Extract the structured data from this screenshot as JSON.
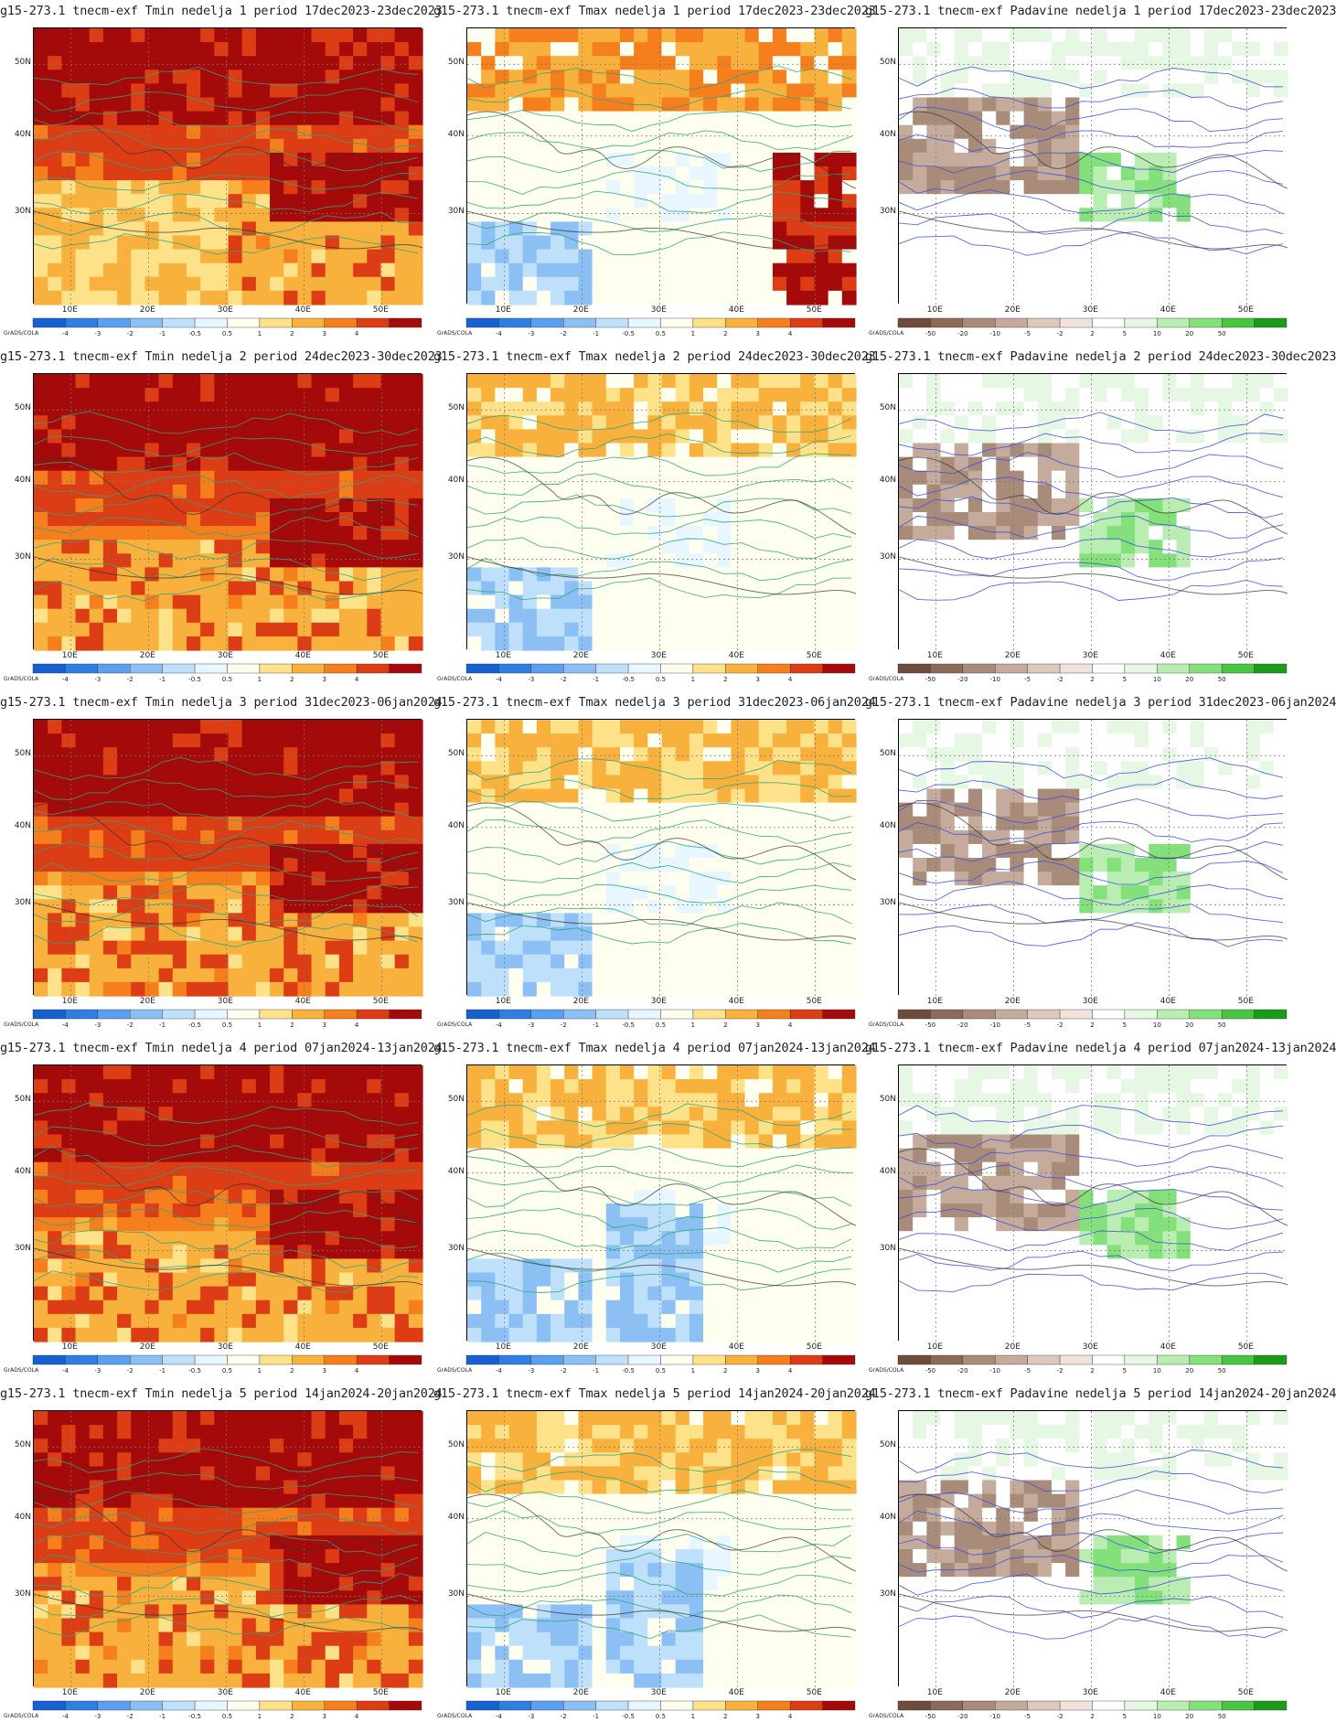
{
  "brand_label": "GrADS/COLA",
  "lat_labels": [
    "50N",
    "40N",
    "30N"
  ],
  "lon_labels": [
    "10E",
    "20E",
    "30E",
    "40E",
    "50E"
  ],
  "colorbars": {
    "temp": {
      "ticks": [
        "-4",
        "-3",
        "-2",
        "-1",
        "-0.5",
        "0.5",
        "1",
        "2",
        "3",
        "4"
      ],
      "colors": [
        "#1760cf",
        "#2f7fe3",
        "#5aa0ee",
        "#8cc0f5",
        "#bfe0fb",
        "#e8f6ff",
        "#fffff0",
        "#fde28a",
        "#f9b13e",
        "#f57e1d",
        "#dc3d14",
        "#a50a0a"
      ]
    },
    "precip": {
      "ticks": [
        "-50",
        "-20",
        "-10",
        "-5",
        "-2",
        "2",
        "5",
        "10",
        "20",
        "50"
      ],
      "colors": [
        "#6e4c3c",
        "#8d6a58",
        "#a98b7a",
        "#c4ab9c",
        "#dcc8bd",
        "#efe3dc",
        "#ffffff",
        "#e6f8e3",
        "#b9edb1",
        "#84e07a",
        "#49c542",
        "#1a9c1a"
      ]
    }
  },
  "rows": [
    {
      "period": "1",
      "dates": "17dec2023-23dec2023"
    },
    {
      "period": "2",
      "dates": "24dec2023-30dec2023"
    },
    {
      "period": "3",
      "dates": "31dec2023-06jan2024"
    },
    {
      "period": "4",
      "dates": "07jan2024-13jan2024"
    },
    {
      "period": "5",
      "dates": "14jan2024-20jan2024"
    }
  ],
  "columns": [
    {
      "var": "Tmin",
      "bar": "temp"
    },
    {
      "var": "Tmax",
      "bar": "temp"
    },
    {
      "var": "Padavine",
      "bar": "precip"
    }
  ],
  "panels": [
    {
      "title": "g15-273.1 tnecm-exf Tmin nedelja 1 period 17dec2023-23dec2023"
    },
    {
      "title": "g15-273.1 tnecm-exf Tmax nedelja 1 period 17dec2023-23dec2023"
    },
    {
      "title": "g15-273.1 tnecm-exf Padavine nedelja 1 period 17dec2023-23dec2023"
    },
    {
      "title": "g15-273.1 tnecm-exf Tmin nedelja 2 period 24dec2023-30dec2023"
    },
    {
      "title": "g15-273.1 tnecm-exf Tmax nedelja 2 period 24dec2023-30dec2023"
    },
    {
      "title": "g15-273.1 tnecm-exf Padavine nedelja 2 period 24dec2023-30dec2023"
    },
    {
      "title": "g15-273.1 tnecm-exf Tmin nedelja 3 period 31dec2023-06jan2024"
    },
    {
      "title": "g15-273.1 tnecm-exf Tmax nedelja 3 period 31dec2023-06jan2024"
    },
    {
      "title": "g15-273.1 tnecm-exf Padavine nedelja 3 period 31dec2023-06jan2024"
    },
    {
      "title": "g15-273.1 tnecm-exf Tmin nedelja 4 period 07jan2024-13jan2024"
    },
    {
      "title": "g15-273.1 tnecm-exf Tmax nedelja 4 period 07jan2024-13jan2024"
    },
    {
      "title": "g15-273.1 tnecm-exf Padavine nedelja 4 period 07jan2024-13jan2024"
    },
    {
      "title": "g15-273.1 tnecm-exf Tmin nedelja 5 period 14jan2024-20jan2024"
    },
    {
      "title": "g15-273.1 tnecm-exf Tmax nedelja 5 period 14jan2024-20jan2024"
    },
    {
      "title": "g15-273.1 tnecm-exf Padavine nedelja 5 period 14jan2024-20jan2024"
    }
  ]
}
